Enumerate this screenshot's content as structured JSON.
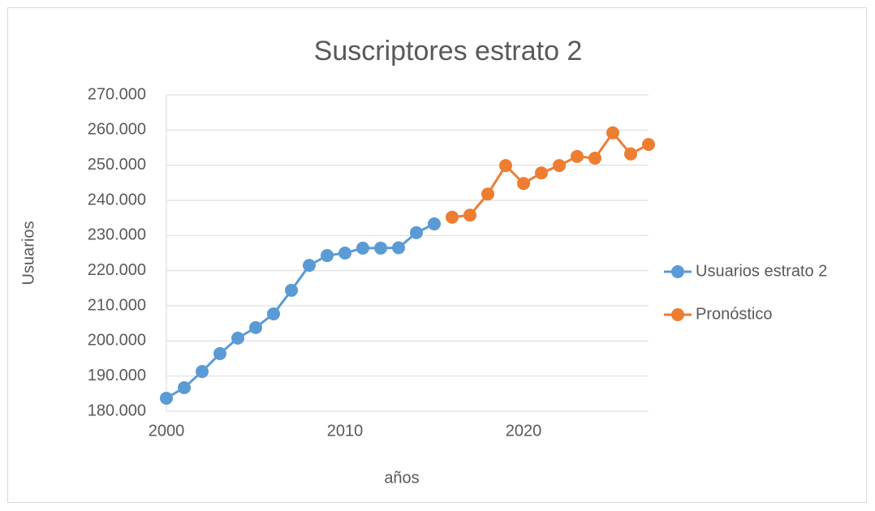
{
  "chart_data": {
    "type": "line",
    "title": "Suscriptores estrato 2",
    "xlabel": "años",
    "ylabel": "Usuarios",
    "x": [
      2000,
      2001,
      2002,
      2003,
      2004,
      2005,
      2006,
      2007,
      2008,
      2009,
      2010,
      2011,
      2012,
      2013,
      2014,
      2015,
      2016,
      2017,
      2018,
      2019,
      2020,
      2021,
      2022,
      2023,
      2024,
      2025,
      2026,
      2027
    ],
    "series": [
      {
        "name": "Usuarios estrato 2",
        "color": "#5b9bd5",
        "values": [
          183700,
          186700,
          191300,
          196400,
          200800,
          203800,
          207700,
          214400,
          221500,
          224300,
          225000,
          226400,
          226400,
          226500,
          230800,
          233300,
          null,
          null,
          null,
          null,
          null,
          null,
          null,
          null,
          null,
          null,
          null,
          null
        ]
      },
      {
        "name": "Pronóstico",
        "color": "#ed7d31",
        "values": [
          null,
          null,
          null,
          null,
          null,
          null,
          null,
          null,
          null,
          null,
          null,
          null,
          null,
          null,
          null,
          null,
          235200,
          235800,
          241800,
          249900,
          244800,
          247800,
          249900,
          252500,
          252000,
          259200,
          253200,
          255900
        ]
      }
    ],
    "xlim": [
      2000,
      2027
    ],
    "xticks": [
      2000,
      2010,
      2020
    ],
    "ylim": [
      180000,
      270000
    ],
    "yticks": [
      {
        "value": 180000,
        "label": "180.000"
      },
      {
        "value": 190000,
        "label": "190.000"
      },
      {
        "value": 200000,
        "label": "200.000"
      },
      {
        "value": 210000,
        "label": "210.000"
      },
      {
        "value": 220000,
        "label": "220.000"
      },
      {
        "value": 230000,
        "label": "230.000"
      },
      {
        "value": 240000,
        "label": "240.000"
      },
      {
        "value": 250000,
        "label": "250.000"
      },
      {
        "value": 260000,
        "label": "260.000"
      },
      {
        "value": 270000,
        "label": "270.000"
      }
    ],
    "grid": true,
    "legend": "right"
  }
}
